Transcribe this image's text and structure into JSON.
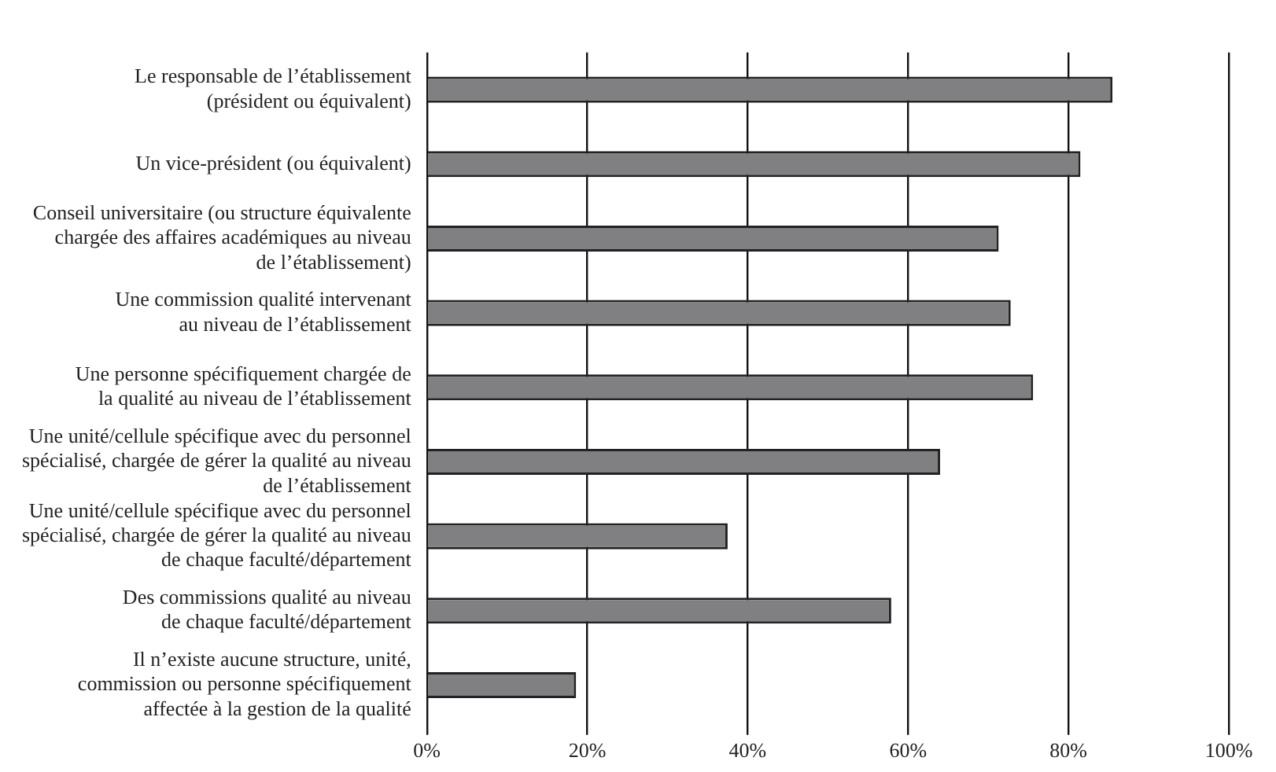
{
  "chart_data": {
    "type": "bar",
    "orientation": "horizontal",
    "categories": [
      "Le responsable de l’établissement\n(président ou équivalent)",
      "Un vice-président (ou équivalent)",
      "Conseil universitaire (ou structure équivalente\nchargée des affaires académiques au niveau\nde l’établissement)",
      "Une commission qualité intervenant\nau niveau de l’établissement",
      "Une personne spécifiquement chargée de\nla qualité au niveau de l’établissement",
      "Une unité/cellule spécifique avec du personnel\nspécialisé, chargée de gérer la qualité au niveau\nde l’établissement",
      "Une unité/cellule spécifique avec du personnel\nspécialisé, chargée de gérer la qualité au niveau\nde chaque faculté/département",
      "Des commissions qualité au niveau\nde chaque faculté/département",
      "Il n’existe aucune structure, unité,\ncommission ou personne spécifiquement\naffectée à la gestion de la qualité"
    ],
    "values": [
      85.5,
      81.5,
      71.3,
      72.8,
      75.6,
      64.0,
      37.5,
      57.9,
      18.6
    ],
    "color": "#808083",
    "xlim": [
      0,
      100
    ],
    "xticks": [
      {
        "value": 0,
        "label": "0%"
      },
      {
        "value": 20,
        "label": "20%"
      },
      {
        "value": 40,
        "label": "40%"
      },
      {
        "value": 60,
        "label": "60%"
      },
      {
        "value": 80,
        "label": "80%"
      },
      {
        "value": 100,
        "label": "100%"
      }
    ],
    "grid": "x"
  }
}
